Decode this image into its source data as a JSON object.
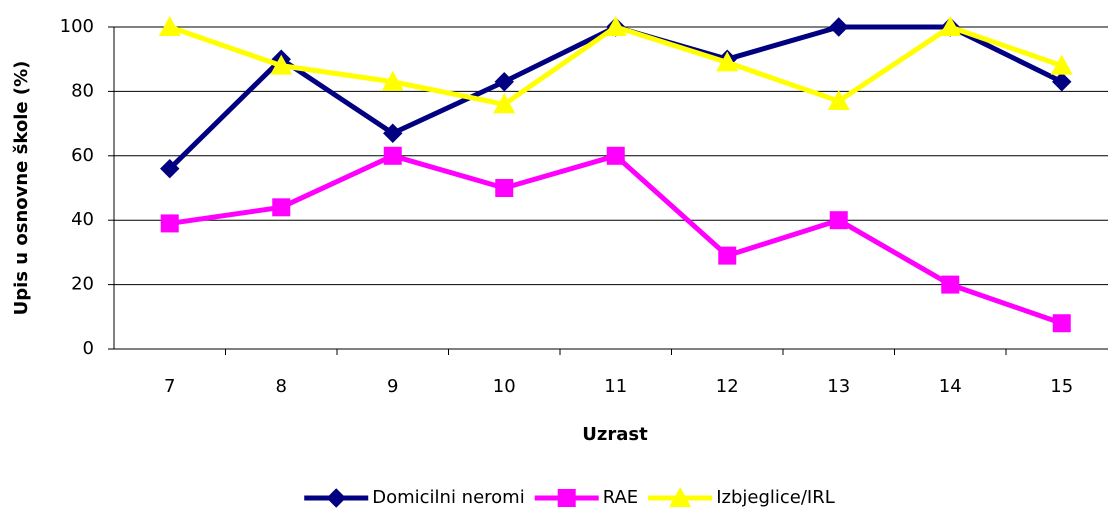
{
  "chart_data": {
    "type": "line",
    "xlabel": "Uzrast",
    "ylabel": "Upis u osnovne škole (%)",
    "categories": [
      "7",
      "8",
      "9",
      "10",
      "11",
      "12",
      "13",
      "14",
      "15"
    ],
    "series": [
      {
        "name": "Domicilni neromi",
        "color": "#000080",
        "marker": "diamond",
        "values": [
          56,
          90,
          67,
          83,
          100,
          90,
          100,
          100,
          83
        ]
      },
      {
        "name": "RAE",
        "color": "#ff00ff",
        "marker": "square",
        "values": [
          39,
          44,
          60,
          50,
          60,
          29,
          40,
          20,
          8
        ]
      },
      {
        "name": "Izbjeglice/IRL",
        "color": "#ffff00",
        "marker": "triangle",
        "values": [
          100,
          88,
          83,
          76,
          100,
          89,
          77,
          100,
          88
        ]
      }
    ],
    "ylim": [
      0,
      100
    ],
    "yticks": [
      0,
      20,
      40,
      60,
      80,
      100
    ],
    "grid": true,
    "legend": "bottom"
  }
}
